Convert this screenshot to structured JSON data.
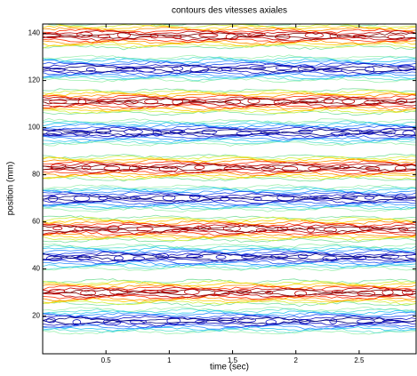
{
  "chart_data": {
    "type": "contour",
    "title": "contours des vitesses axiales",
    "xlabel": "time (sec)",
    "ylabel": "position (mm)",
    "xlim": [
      0,
      2.95
    ],
    "ylim": [
      4,
      144
    ],
    "xticks": [
      0.5,
      1,
      1.5,
      2,
      2.5
    ],
    "yticks": [
      20,
      40,
      60,
      80,
      100,
      120,
      140
    ],
    "bands": [
      {
        "position": 139,
        "sign": "high",
        "color": "#d7191c"
      },
      {
        "position": 125,
        "sign": "low",
        "color": "#1a1adf"
      },
      {
        "position": 111,
        "sign": "high",
        "color": "#d7191c"
      },
      {
        "position": 98,
        "sign": "low",
        "color": "#1a1adf"
      },
      {
        "position": 83,
        "sign": "high",
        "color": "#d7191c"
      },
      {
        "position": 70,
        "sign": "low",
        "color": "#1a1adf"
      },
      {
        "position": 57,
        "sign": "high",
        "color": "#d7191c"
      },
      {
        "position": 45,
        "sign": "low",
        "color": "#1a1adf"
      },
      {
        "position": 30,
        "sign": "high",
        "color": "#d7191c"
      },
      {
        "position": 18,
        "sign": "low",
        "color": "#1a1adf"
      }
    ]
  }
}
